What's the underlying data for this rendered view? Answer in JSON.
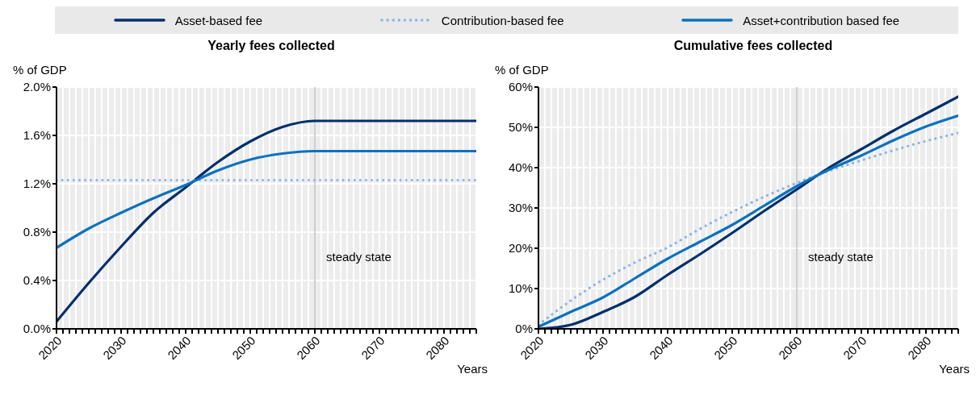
{
  "chart_data": [
    {
      "type": "line",
      "title": "Yearly fees collected",
      "ylabel": "% of GDP",
      "xlabel": "Years",
      "x": [
        2020,
        2025,
        2030,
        2035,
        2040,
        2045,
        2050,
        2055,
        2060,
        2065,
        2070,
        2075,
        2080,
        2085
      ],
      "series": [
        {
          "name": "Asset-based fee",
          "color": "#002f6c",
          "line_style": "solid",
          "values": [
            0.06,
            0.38,
            0.68,
            0.96,
            1.17,
            1.38,
            1.55,
            1.67,
            1.72,
            1.72,
            1.72,
            1.72,
            1.72,
            1.72
          ]
        },
        {
          "name": "Contribution-based fee",
          "color": "#8cb4e6",
          "line_style": "dotted",
          "values": [
            1.23,
            1.23,
            1.23,
            1.23,
            1.23,
            1.23,
            1.23,
            1.23,
            1.23,
            1.23,
            1.23,
            1.23,
            1.23,
            1.23
          ]
        },
        {
          "name": "Asset+contribution based fee",
          "color": "#0b72bf",
          "line_style": "solid",
          "values": [
            0.67,
            0.83,
            0.96,
            1.08,
            1.19,
            1.31,
            1.4,
            1.45,
            1.47,
            1.47,
            1.47,
            1.47,
            1.47,
            1.47
          ]
        }
      ],
      "xlim": [
        2020,
        2085
      ],
      "xticks": [
        2020,
        {
          "value": 2021,
          "label": null
        },
        {
          "value": 2022,
          "label": null
        },
        {
          "value": 2023,
          "label": null
        },
        {
          "value": 2024,
          "label": null
        },
        {
          "value": 2025,
          "label": null
        },
        {
          "value": 2026,
          "label": null
        },
        {
          "value": 2027,
          "label": null
        },
        {
          "value": 2028,
          "label": null
        },
        {
          "value": 2029,
          "label": null
        },
        2030,
        {
          "value": 2031,
          "label": null
        },
        {
          "value": 2032,
          "label": null
        },
        {
          "value": 2033,
          "label": null
        },
        {
          "value": 2034,
          "label": null
        },
        {
          "value": 2035,
          "label": null
        },
        {
          "value": 2036,
          "label": null
        },
        {
          "value": 2037,
          "label": null
        },
        {
          "value": 2038,
          "label": null
        },
        {
          "value": 2039,
          "label": null
        },
        2040,
        {
          "value": 2041,
          "label": null
        },
        {
          "value": 2042,
          "label": null
        },
        {
          "value": 2043,
          "label": null
        },
        {
          "value": 2044,
          "label": null
        },
        {
          "value": 2045,
          "label": null
        },
        {
          "value": 2046,
          "label": null
        },
        {
          "value": 2047,
          "label": null
        },
        {
          "value": 2048,
          "label": null
        },
        {
          "value": 2049,
          "label": null
        },
        2050,
        {
          "value": 2051,
          "label": null
        },
        {
          "value": 2052,
          "label": null
        },
        {
          "value": 2053,
          "label": null
        },
        {
          "value": 2054,
          "label": null
        },
        {
          "value": 2055,
          "label": null
        },
        {
          "value": 2056,
          "label": null
        },
        {
          "value": 2057,
          "label": null
        },
        {
          "value": 2058,
          "label": null
        },
        {
          "value": 2059,
          "label": null
        },
        2060,
        {
          "value": 2061,
          "label": null
        },
        {
          "value": 2062,
          "label": null
        },
        {
          "value": 2063,
          "label": null
        },
        {
          "value": 2064,
          "label": null
        },
        {
          "value": 2065,
          "label": null
        },
        {
          "value": 2066,
          "label": null
        },
        {
          "value": 2067,
          "label": null
        },
        {
          "value": 2068,
          "label": null
        },
        {
          "value": 2069,
          "label": null
        },
        2070,
        {
          "value": 2071,
          "label": null
        },
        {
          "value": 2072,
          "label": null
        },
        {
          "value": 2073,
          "label": null
        },
        {
          "value": 2074,
          "label": null
        },
        {
          "value": 2075,
          "label": null
        },
        {
          "value": 2076,
          "label": null
        },
        {
          "value": 2077,
          "label": null
        },
        {
          "value": 2078,
          "label": null
        },
        {
          "value": 2079,
          "label": null
        },
        2080,
        {
          "value": 2081,
          "label": null
        },
        {
          "value": 2082,
          "label": null
        },
        {
          "value": 2083,
          "label": null
        },
        {
          "value": 2084,
          "label": null
        },
        {
          "value": 2085,
          "label": null
        }
      ],
      "ylim": [
        0,
        2
      ],
      "yticks": [
        {
          "value": 0,
          "label": "0.0%"
        },
        {
          "value": 0.4,
          "label": "0.4%"
        },
        {
          "value": 0.8,
          "label": "0.8%"
        },
        {
          "value": 1.2,
          "label": "1.2%"
        },
        {
          "value": 1.6,
          "label": "1.6%"
        },
        {
          "value": 2,
          "label": "2.0%"
        }
      ],
      "ref_lines": [
        {
          "axis": "x",
          "value": 2060,
          "label": "steady state",
          "color": "#b0b0b0"
        }
      ],
      "grid": true,
      "legend": "top",
      "marker": "none"
    },
    {
      "type": "line",
      "title": "Cumulative fees collected",
      "ylabel": "% of GDP",
      "xlabel": "Years",
      "x": [
        2020,
        2025,
        2030,
        2035,
        2040,
        2045,
        2050,
        2055,
        2060,
        2065,
        2070,
        2075,
        2080,
        2085
      ],
      "series": [
        {
          "color": "#002f6c",
          "line_style": "solid",
          "values": [
            0,
            1,
            4.2,
            8,
            13.4,
            18.5,
            23.8,
            29.3,
            34.6,
            40,
            44.6,
            49.2,
            53.4,
            57.6
          ]
        },
        {
          "color": "#8cb4e6",
          "line_style": "dotted",
          "values": [
            1,
            7,
            12.2,
            16.5,
            20.2,
            24.8,
            29,
            32.8,
            36.2,
            39.2,
            41.8,
            44.3,
            46.6,
            48.6
          ]
        },
        {
          "color": "#0b72bf",
          "line_style": "solid",
          "values": [
            0.5,
            4.2,
            7.8,
            12.6,
            17.4,
            21.6,
            25.8,
            30.6,
            35.4,
            39.5,
            43,
            46.8,
            50.2,
            52.9
          ]
        }
      ],
      "xlim": [
        2020,
        2085
      ],
      "xticks": [
        2020,
        {
          "value": 2021,
          "label": null
        },
        {
          "value": 2022,
          "label": null
        },
        {
          "value": 2023,
          "label": null
        },
        {
          "value": 2024,
          "label": null
        },
        {
          "value": 2025,
          "label": null
        },
        {
          "value": 2026,
          "label": null
        },
        {
          "value": 2027,
          "label": null
        },
        {
          "value": 2028,
          "label": null
        },
        {
          "value": 2029,
          "label": null
        },
        2030,
        {
          "value": 2031,
          "label": null
        },
        {
          "value": 2032,
          "label": null
        },
        {
          "value": 2033,
          "label": null
        },
        {
          "value": 2034,
          "label": null
        },
        {
          "value": 2035,
          "label": null
        },
        {
          "value": 2036,
          "label": null
        },
        {
          "value": 2037,
          "label": null
        },
        {
          "value": 2038,
          "label": null
        },
        {
          "value": 2039,
          "label": null
        },
        2040,
        {
          "value": 2041,
          "label": null
        },
        {
          "value": 2042,
          "label": null
        },
        {
          "value": 2043,
          "label": null
        },
        {
          "value": 2044,
          "label": null
        },
        {
          "value": 2045,
          "label": null
        },
        {
          "value": 2046,
          "label": null
        },
        {
          "value": 2047,
          "label": null
        },
        {
          "value": 2048,
          "label": null
        },
        {
          "value": 2049,
          "label": null
        },
        2050,
        {
          "value": 2051,
          "label": null
        },
        {
          "value": 2052,
          "label": null
        },
        {
          "value": 2053,
          "label": null
        },
        {
          "value": 2054,
          "label": null
        },
        {
          "value": 2055,
          "label": null
        },
        {
          "value": 2056,
          "label": null
        },
        {
          "value": 2057,
          "label": null
        },
        {
          "value": 2058,
          "label": null
        },
        {
          "value": 2059,
          "label": null
        },
        2060,
        {
          "value": 2061,
          "label": null
        },
        {
          "value": 2062,
          "label": null
        },
        {
          "value": 2063,
          "label": null
        },
        {
          "value": 2064,
          "label": null
        },
        {
          "value": 2065,
          "label": null
        },
        {
          "value": 2066,
          "label": null
        },
        {
          "value": 2067,
          "label": null
        },
        {
          "value": 2068,
          "label": null
        },
        {
          "value": 2069,
          "label": null
        },
        2070,
        {
          "value": 2071,
          "label": null
        },
        {
          "value": 2072,
          "label": null
        },
        {
          "value": 2073,
          "label": null
        },
        {
          "value": 2074,
          "label": null
        },
        {
          "value": 2075,
          "label": null
        },
        {
          "value": 2076,
          "label": null
        },
        {
          "value": 2077,
          "label": null
        },
        {
          "value": 2078,
          "label": null
        },
        {
          "value": 2079,
          "label": null
        },
        2080,
        {
          "value": 2081,
          "label": null
        },
        {
          "value": 2082,
          "label": null
        },
        {
          "value": 2083,
          "label": null
        },
        {
          "value": 2084,
          "label": null
        },
        {
          "value": 2085,
          "label": null
        }
      ],
      "ylim": [
        0,
        60
      ],
      "yticks": [
        {
          "value": 0,
          "label": "0%"
        },
        {
          "value": 10,
          "label": "10%"
        },
        {
          "value": 20,
          "label": "20%"
        },
        {
          "value": 30,
          "label": "30%"
        },
        {
          "value": 40,
          "label": "40%"
        },
        {
          "value": 50,
          "label": "50%"
        },
        {
          "value": 60,
          "label": "60%"
        }
      ],
      "ref_lines": [
        {
          "axis": "x",
          "value": 2060,
          "label": "steady state",
          "color": "#b0b0b0"
        }
      ],
      "grid": true,
      "marker": "none"
    }
  ]
}
